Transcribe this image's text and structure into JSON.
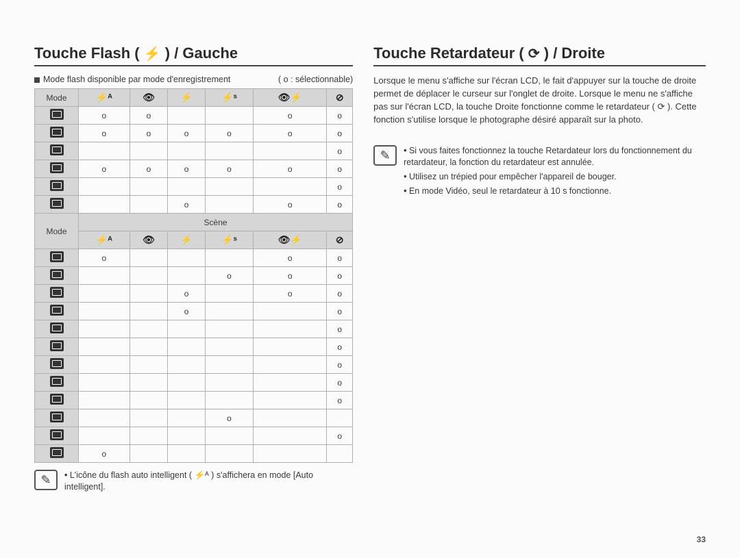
{
  "page_number": "33",
  "left": {
    "heading_before": "Touche Flash (",
    "heading_after": ") / Gauche",
    "sub_before": "Mode flash disponible par mode d'enregistrement",
    "sub_after": "( o : sélectionnable)",
    "mode_label": "Mode",
    "scene_label": "Scène",
    "col_headers": [
      "⚡ᴬ",
      "👁",
      "⚡",
      "⚡ˢ",
      "👁⚡",
      "⊘"
    ],
    "rows_top": [
      [
        "o",
        "o",
        "",
        "",
        "o",
        "o"
      ],
      [
        "o",
        "o",
        "o",
        "o",
        "o",
        "o"
      ],
      [
        "",
        "",
        "",
        "",
        "",
        "o"
      ],
      [
        "o",
        "o",
        "o",
        "o",
        "o",
        "o"
      ],
      [
        "",
        "",
        "",
        "",
        "",
        "o"
      ],
      [
        "",
        "",
        "o",
        "",
        "o",
        "o"
      ]
    ],
    "rows_bottom": [
      [
        "o",
        "",
        "",
        "",
        "o",
        "o"
      ],
      [
        "",
        "",
        "",
        "o",
        "o",
        "o"
      ],
      [
        "",
        "",
        "o",
        "",
        "o",
        "o"
      ],
      [
        "",
        "",
        "o",
        "",
        "",
        "o"
      ],
      [
        "",
        "",
        "",
        "",
        "",
        "o"
      ],
      [
        "",
        "",
        "",
        "",
        "",
        "o"
      ],
      [
        "",
        "",
        "",
        "",
        "",
        "o"
      ],
      [
        "",
        "",
        "",
        "",
        "",
        "o"
      ],
      [
        "",
        "",
        "",
        "",
        "",
        "o"
      ],
      [
        "",
        "",
        "",
        "o",
        "",
        ""
      ],
      [
        "",
        "",
        "",
        "",
        "",
        "o"
      ],
      [
        "o",
        "",
        "",
        "",
        "",
        ""
      ]
    ],
    "note1_a": "L'icône du flash auto intelligent (",
    "note1_b": ") s'affichera en mode [Auto intelligent]."
  },
  "right": {
    "heading_before": "Touche Retardateur (",
    "heading_after": ") / Droite",
    "body": "Lorsque le menu s'affiche sur l'écran LCD, le fait d'appuyer sur la touche de droite permet de déplacer le curseur sur l'onglet de droite. Lorsque le menu ne s'affiche pas sur l'écran LCD, la touche Droite fonctionne comme le retardateur ( ⟳ ). Cette fonction s'utilise lorsque le photographe désiré apparaît sur la photo.",
    "bullets": [
      "Si vous faites fonctionnez la touche Retardateur lors du fonctionnement du retardateur, la fonction du retardateur est annulée.",
      "Utilisez un trépied pour empêcher l'appareil de bouger.",
      "En mode Vidéo, seul le retardateur à 10 s fonctionne."
    ]
  },
  "icons": {
    "flash": "⚡",
    "timer": "⟳",
    "pencil": "✎",
    "flash_smart": "⚡ᴬ"
  }
}
